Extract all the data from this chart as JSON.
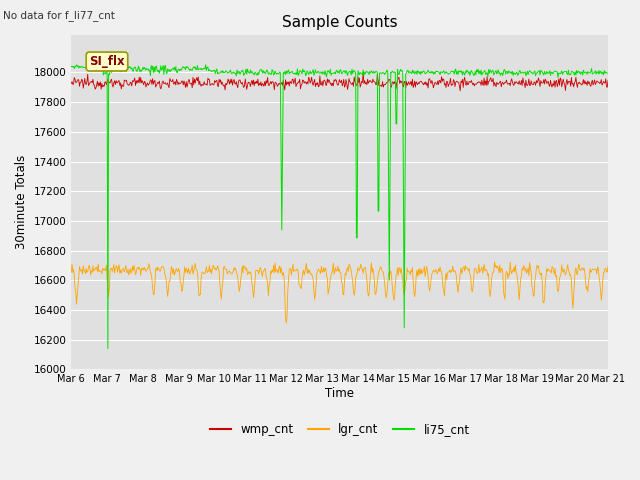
{
  "title": "Sample Counts",
  "no_data_label": "No data for f_li77_cnt",
  "ylabel": "30minute Totals",
  "xlabel": "Time",
  "annotation": "SI_flx",
  "ylim": [
    16000,
    18250
  ],
  "yticks": [
    16000,
    16200,
    16400,
    16600,
    16800,
    17000,
    17200,
    17400,
    17600,
    17800,
    18000
  ],
  "xtick_labels": [
    "Mar 6",
    "Mar 7",
    "Mar 8",
    "Mar 9",
    "Mar 10",
    "Mar 11",
    "Mar 12",
    "Mar 13",
    "Mar 14",
    "Mar 15",
    "Mar 16",
    "Mar 17",
    "Mar 18",
    "Mar 19",
    "Mar 20",
    "Mar 21"
  ],
  "wmp_color": "#cc0000",
  "lgr_color": "#ffa500",
  "li75_color": "#00dd00",
  "fig_bg_color": "#f0f0f0",
  "plot_bg_color": "#e0e0e0",
  "grid_color": "#ffffff",
  "legend_labels": [
    "wmp_cnt",
    "lgr_cnt",
    "li75_cnt"
  ],
  "wmp_base": 17930,
  "wmp_noise": 18,
  "lgr_base": 16670,
  "lgr_noise": 20,
  "li75_base": 18000,
  "li75_noise": 10,
  "n_days": 15,
  "pts_per_day": 48
}
